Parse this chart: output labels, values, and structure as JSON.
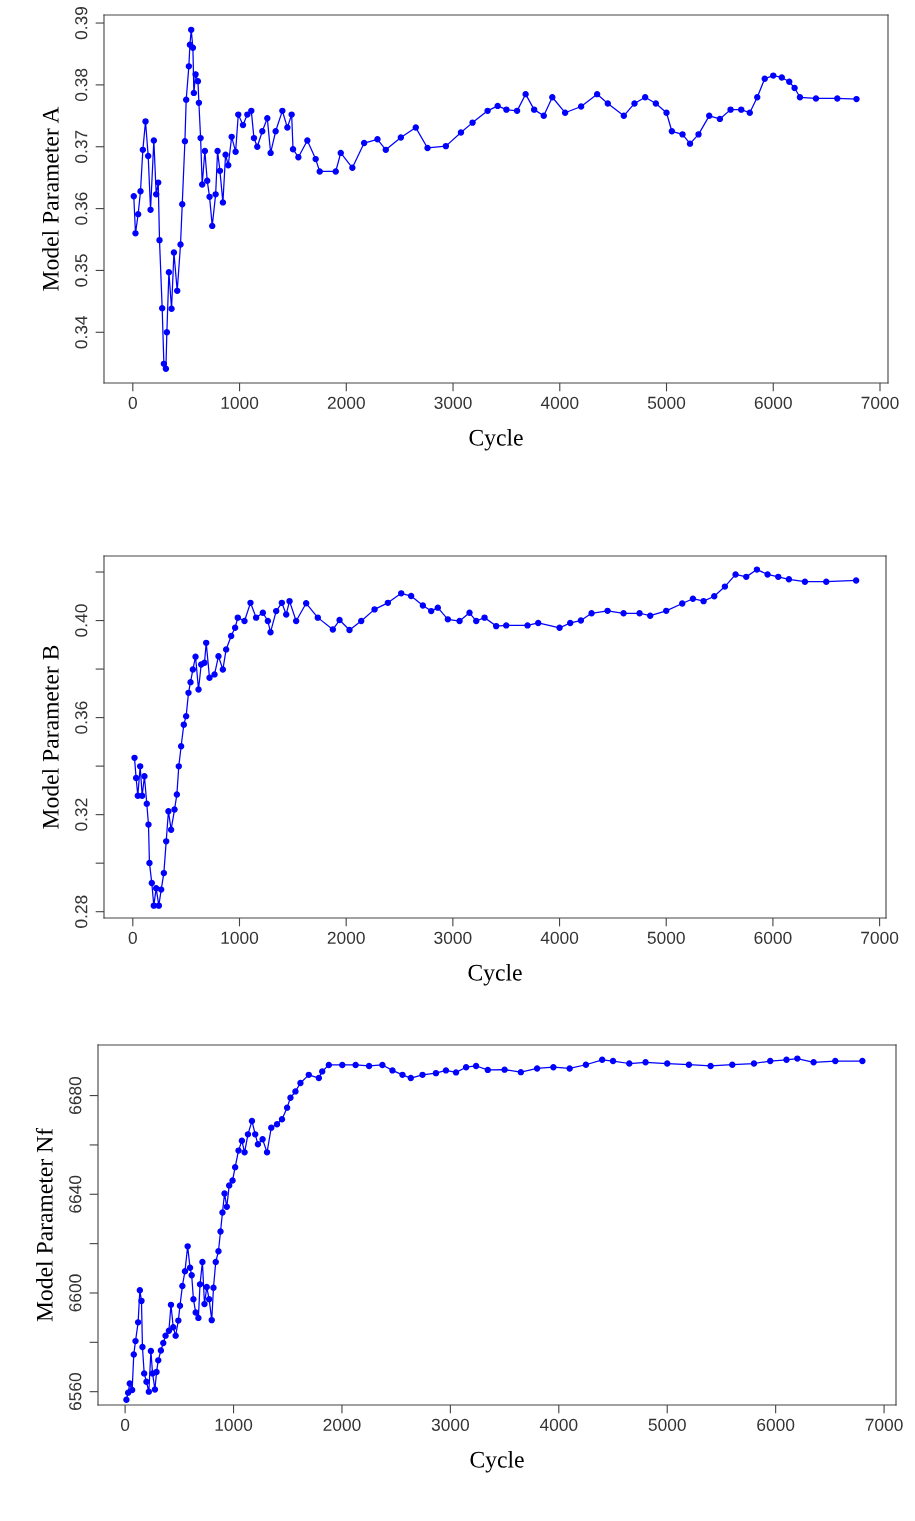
{
  "chart_data": [
    {
      "type": "line",
      "xlabel": "Cycle",
      "ylabel": "Model Parameter A",
      "marker": "circle",
      "line_style": "solid",
      "xlim": [
        -270,
        7075
      ],
      "xticks": [
        0,
        1000,
        2000,
        3000,
        4000,
        5000,
        6000,
        7000
      ],
      "ylim": [
        0.3318,
        0.3913
      ],
      "yticks": [
        0.34,
        0.35,
        0.36,
        0.37,
        0.38,
        0.39
      ],
      "series": [
        {
          "color": "#0000ff",
          "x": [
            9,
            25,
            50,
            72,
            94,
            119,
            144,
            166,
            197,
            219,
            238,
            250,
            275,
            291,
            310,
            319,
            338,
            363,
            385,
            416,
            447,
            463,
            488,
            500,
            525,
            535,
            547,
            563,
            572,
            588,
            610,
            619,
            635,
            650,
            675,
            697,
            719,
            744,
            776,
            794,
            816,
            844,
            869,
            894,
            926,
            963,
            988,
            1032,
            1073,
            1110,
            1135,
            1166,
            1213,
            1260,
            1291,
            1338,
            1401,
            1448,
            1488,
            1501,
            1551,
            1635,
            1713,
            1751,
            1901,
            1948,
            2057,
            2167,
            2292,
            2370,
            2511,
            2651,
            2761,
            2933,
            3074,
            3183,
            3324,
            3418,
            3500,
            3600,
            3680,
            3760,
            3850,
            3930,
            4050,
            4200,
            4350,
            4450,
            4600,
            4700,
            4800,
            4900,
            5000,
            5050,
            5150,
            5220,
            5300,
            5400,
            5500,
            5600,
            5700,
            5780,
            5850,
            5920,
            6000,
            6080,
            6150,
            6200,
            6250,
            6400,
            6600,
            6780
          ],
          "values": [
            0.362,
            0.356,
            0.3591,
            0.3628,
            0.3695,
            0.3741,
            0.3685,
            0.3598,
            0.371,
            0.3623,
            0.3642,
            0.3549,
            0.3439,
            0.3349,
            0.3341,
            0.34,
            0.3497,
            0.3438,
            0.3529,
            0.3467,
            0.3542,
            0.3607,
            0.3709,
            0.3776,
            0.383,
            0.3865,
            0.3889,
            0.386,
            0.3787,
            0.3817,
            0.3806,
            0.3771,
            0.3714,
            0.3639,
            0.3693,
            0.3645,
            0.3619,
            0.3572,
            0.3623,
            0.3693,
            0.3661,
            0.361,
            0.3687,
            0.367,
            0.3716,
            0.3692,
            0.3752,
            0.3735,
            0.3752,
            0.3758,
            0.3714,
            0.37,
            0.3725,
            0.3746,
            0.369,
            0.3725,
            0.3758,
            0.3731,
            0.3752,
            0.3696,
            0.3683,
            0.371,
            0.368,
            0.366,
            0.366,
            0.369,
            0.3666,
            0.3706,
            0.3712,
            0.3695,
            0.3715,
            0.3731,
            0.3698,
            0.3701,
            0.3723,
            0.3739,
            0.3758,
            0.3766,
            0.376,
            0.3758,
            0.3785,
            0.376,
            0.375,
            0.378,
            0.3755,
            0.3765,
            0.3785,
            0.377,
            0.375,
            0.377,
            0.378,
            0.377,
            0.3755,
            0.3725,
            0.372,
            0.3705,
            0.372,
            0.375,
            0.3745,
            0.376,
            0.376,
            0.3755,
            0.378,
            0.381,
            0.3815,
            0.3812,
            0.3805,
            0.3795,
            0.378,
            0.3778,
            0.3778,
            0.3777
          ]
        }
      ]
    },
    {
      "type": "line",
      "xlabel": "Cycle",
      "ylabel": "Model Parameter B",
      "marker": "circle",
      "line_style": "solid",
      "xlim": [
        -270,
        7060
      ],
      "xticks": [
        0,
        1000,
        2000,
        3000,
        4000,
        5000,
        6000,
        7000
      ],
      "ylim": [
        0.2774,
        0.4266
      ],
      "yticks": [
        0.28,
        {
          "value": 0.3,
          "label": null
        },
        0.32,
        {
          "value": 0.34,
          "label": null
        },
        0.36,
        {
          "value": 0.38,
          "label": null
        },
        {
          "value": 0.4,
          "label": "0.40"
        },
        {
          "value": 0.42,
          "label": null
        }
      ],
      "series": [
        {
          "color": "#0000ff",
          "x": [
            16,
            31,
            47,
            69,
            88,
            109,
            131,
            147,
            156,
            178,
            197,
            219,
            244,
            266,
            291,
            313,
            334,
            359,
            391,
            413,
            431,
            453,
            478,
            500,
            522,
            541,
            563,
            588,
            616,
            641,
            672,
            688,
            719,
            766,
            803,
            844,
            875,
            922,
            959,
            984,
            1047,
            1103,
            1156,
            1219,
            1266,
            1291,
            1344,
            1397,
            1438,
            1469,
            1531,
            1625,
            1734,
            1875,
            1938,
            2031,
            2141,
            2266,
            2391,
            2516,
            2609,
            2719,
            2797,
            2859,
            2953,
            3063,
            3156,
            3219,
            3297,
            3406,
            3500,
            3700,
            3800,
            4000,
            4100,
            4200,
            4300,
            4450,
            4600,
            4750,
            4850,
            5000,
            5150,
            5250,
            5350,
            5450,
            5550,
            5650,
            5750,
            5850,
            5950,
            6050,
            6150,
            6300,
            6500,
            6780
          ],
          "values": [
            0.3434,
            0.3351,
            0.3278,
            0.3399,
            0.3278,
            0.3358,
            0.3245,
            0.3159,
            0.3001,
            0.2918,
            0.2825,
            0.2897,
            0.2825,
            0.2891,
            0.2959,
            0.309,
            0.3214,
            0.3138,
            0.3221,
            0.3283,
            0.3399,
            0.3482,
            0.3571,
            0.3606,
            0.3702,
            0.3746,
            0.3798,
            0.3851,
            0.3716,
            0.3819,
            0.3826,
            0.3908,
            0.3764,
            0.3778,
            0.3853,
            0.3798,
            0.3881,
            0.3936,
            0.397,
            0.4012,
            0.3998,
            0.4073,
            0.4012,
            0.4032,
            0.3998,
            0.3952,
            0.4039,
            0.4073,
            0.4025,
            0.408,
            0.3998,
            0.4071,
            0.4012,
            0.3963,
            0.4002,
            0.3961,
            0.3998,
            0.4046,
            0.4073,
            0.4112,
            0.4101,
            0.4062,
            0.4039,
            0.4053,
            0.4005,
            0.3998,
            0.4032,
            0.3998,
            0.4012,
            0.3977,
            0.398,
            0.398,
            0.399,
            0.397,
            0.399,
            0.4,
            0.403,
            0.404,
            0.403,
            0.403,
            0.402,
            0.404,
            0.407,
            0.409,
            0.408,
            0.41,
            0.414,
            0.419,
            0.418,
            0.421,
            0.419,
            0.418,
            0.417,
            0.416,
            0.416,
            0.4165
          ]
        }
      ]
    },
    {
      "type": "line",
      "xlabel": "Cycle",
      "ylabel": "Model Parameter Nf",
      "marker": "circle",
      "line_style": "solid",
      "xlim": [
        -250,
        7110
      ],
      "xticks": [
        0,
        1000,
        2000,
        3000,
        4000,
        5000,
        6000,
        7000
      ],
      "ylim": [
        6554.6,
        6700.5
      ],
      "yticks": [
        6560,
        {
          "value": 6580,
          "label": null
        },
        6600,
        {
          "value": 6620,
          "label": null
        },
        6640,
        {
          "value": 6660,
          "label": null
        },
        6680
      ],
      "series": [
        {
          "color": "#0000ff",
          "x": [
            12,
            28,
            43,
            65,
            80,
            96,
            120,
            136,
            151,
            160,
            176,
            197,
            219,
            238,
            253,
            275,
            290,
            306,
            330,
            352,
            373,
            404,
            423,
            444,
            466,
            491,
            506,
            528,
            552,
            577,
            599,
            614,
            630,
            651,
            676,
            691,
            713,
            732,
            753,
            775,
            799,
            815,
            836,
            861,
            880,
            898,
            917,
            938,
            960,
            991,
            1015,
            1046,
            1077,
            1102,
            1133,
            1170,
            1200,
            1225,
            1268,
            1309,
            1348,
            1401,
            1447,
            1494,
            1525,
            1571,
            1617,
            1694,
            1787,
            1818,
            1879,
            2003,
            2126,
            2250,
            2373,
            2466,
            2558,
            2635,
            2743,
            2867,
            2959,
            3052,
            3145,
            3237,
            3345,
            3500,
            3650,
            3800,
            3950,
            4100,
            4250,
            4400,
            4500,
            4650,
            4800,
            5000,
            5200,
            5400,
            5600,
            5800,
            5950,
            6100,
            6200,
            6350,
            6550,
            6800
          ],
          "values": [
            6556.7,
            6559.6,
            6563.3,
            6560.7,
            6575.1,
            6580.5,
            6588.1,
            6601.1,
            6596.8,
            6578.1,
            6567.4,
            6564.0,
            6560.0,
            6576.5,
            6567.4,
            6560.9,
            6568.0,
            6572.7,
            6576.7,
            6579.7,
            6582.7,
            6584.7,
            6595.2,
            6586.1,
            6582.7,
            6588.8,
            6594.8,
            6602.8,
            6608.8,
            6618.9,
            6610.2,
            6607.2,
            6597.5,
            6592.1,
            6589.9,
            6603.5,
            6612.6,
            6595.5,
            6602.4,
            6597.5,
            6589.0,
            6602.1,
            6612.6,
            6616.9,
            6624.9,
            6632.6,
            6640.3,
            6634.9,
            6643.6,
            6645.6,
            6651.0,
            6657.7,
            6661.7,
            6657.0,
            6664.3,
            6669.7,
            6664.3,
            6660.3,
            6662.3,
            6657.0,
            6667.0,
            6668.4,
            6670.4,
            6675.1,
            6679.1,
            6681.7,
            6685.1,
            6688.4,
            6687.1,
            6689.8,
            6692.4,
            6692.4,
            6692.4,
            6692.0,
            6692.4,
            6690.2,
            6688.4,
            6687.1,
            6688.4,
            6689.1,
            6690.2,
            6689.4,
            6691.5,
            6692.0,
            6690.4,
            6690.5,
            6689.5,
            6691,
            6691.5,
            6691,
            6692.5,
            6694.5,
            6694,
            6693,
            6693.5,
            6693,
            6692.5,
            6692,
            6692.5,
            6693,
            6694,
            6694.5,
            6695,
            6693.5,
            6694,
            6694
          ]
        }
      ]
    }
  ]
}
